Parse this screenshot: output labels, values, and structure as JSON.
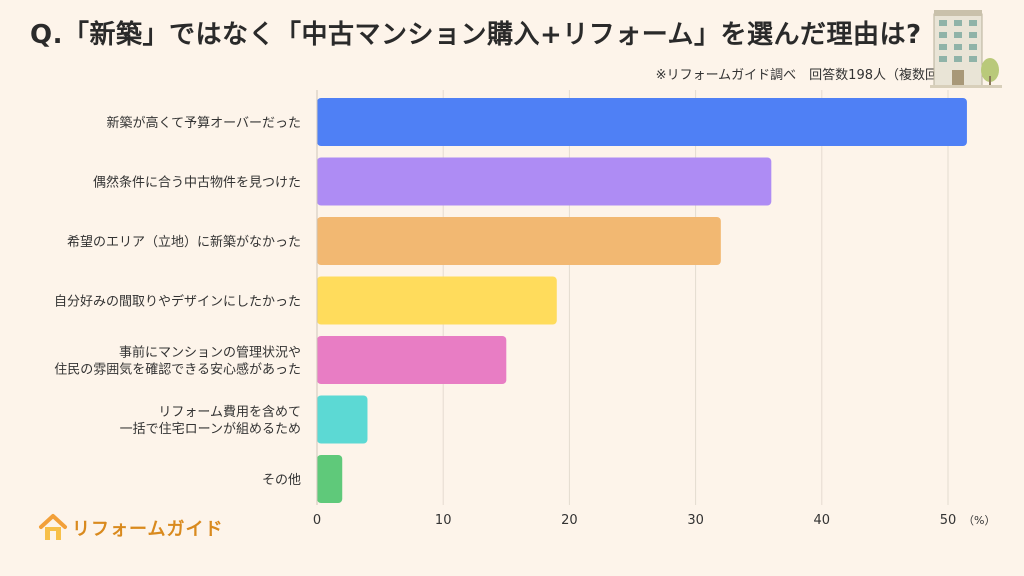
{
  "title": "Q.「新築」ではなく「中古マンション購入+リフォーム」を選んだ理由は?",
  "subtitle": "※リフォームガイド調べ　回答数198人（複数回答）",
  "logo": {
    "text": "リフォームガイド",
    "icon": "house-icon"
  },
  "decoration": {
    "icon": "building-icon"
  },
  "chart_data": {
    "type": "bar",
    "orientation": "horizontal",
    "categories": [
      [
        "新築が高くて予算オーバーだった"
      ],
      [
        "偶然条件に合う中古物件を見つけた"
      ],
      [
        "希望のエリア（立地）に新築がなかった"
      ],
      [
        "自分好みの間取りやデザインにしたかった"
      ],
      [
        "事前にマンションの管理状況や",
        "住民の雰囲気を確認できる安心感があった"
      ],
      [
        "リフォーム費用を含めて",
        "一括で住宅ローンが組めるため"
      ],
      [
        "その他"
      ]
    ],
    "values": [
      51.5,
      36,
      32,
      19,
      15,
      4,
      2
    ],
    "colors": [
      "#4f80f5",
      "#ae8cf4",
      "#f2b872",
      "#ffdc5c",
      "#e87dc4",
      "#5cd9d4",
      "#5fc97a"
    ],
    "xlim": [
      0,
      50
    ],
    "xticks": [
      "0",
      "10",
      "20",
      "30",
      "40",
      "50"
    ],
    "unit_label": "（%）",
    "grid": true
  }
}
